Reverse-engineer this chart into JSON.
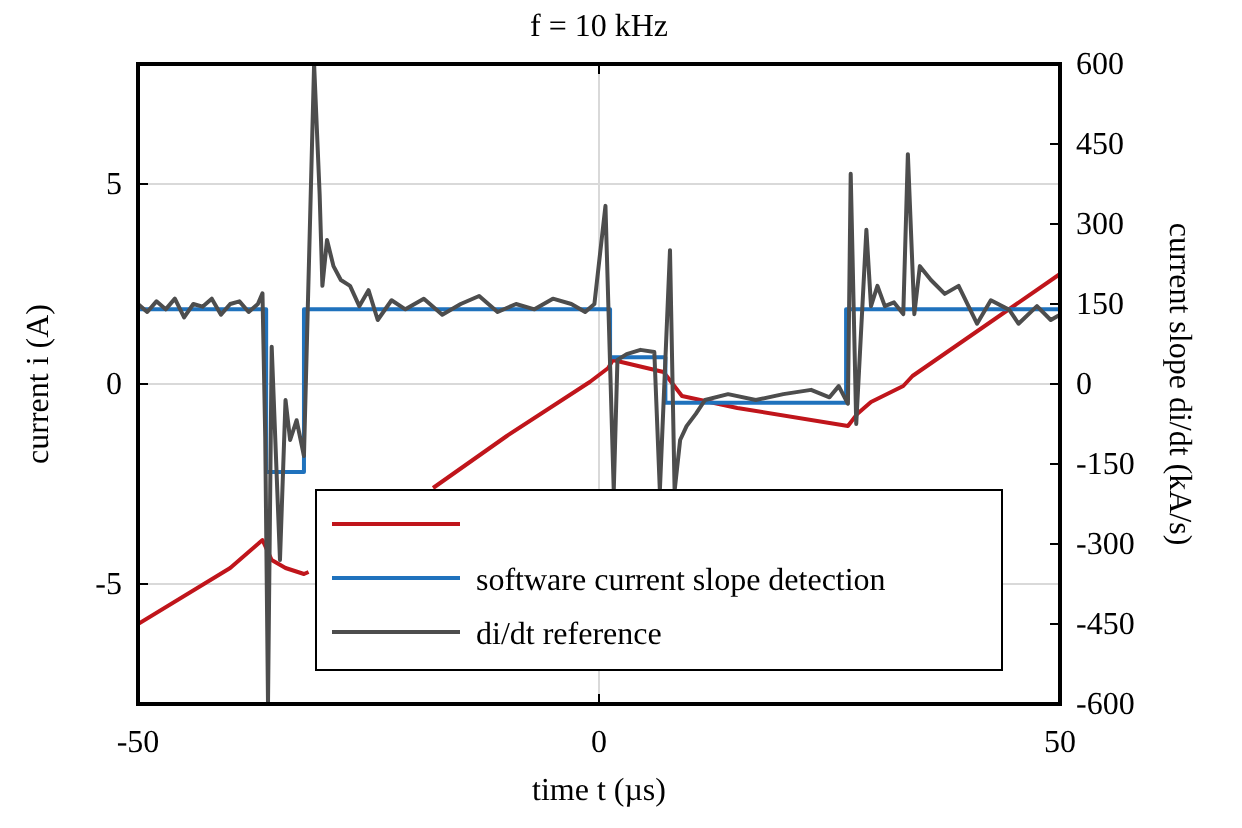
{
  "chart_data": {
    "type": "line",
    "title": "f = 10 kHz",
    "xlabel": "time t (µs)",
    "ylabel": "current i (A)",
    "y2label": "current slope di/dt (kA/s)",
    "xlim": [
      -50,
      50
    ],
    "xticks": [
      -50,
      0,
      50
    ],
    "ylim": [
      -8,
      8
    ],
    "yticks": [
      -5,
      0,
      5
    ],
    "y2lim": [
      -600,
      600
    ],
    "y2ticks": [
      -600,
      -450,
      -300,
      -150,
      0,
      150,
      300,
      450,
      600
    ],
    "grid": true,
    "legend": "bottom",
    "line_style": "solid",
    "marker": "none",
    "series": [
      {
        "color": "#c0151b",
        "axis": "y",
        "x": [
          -50,
          -40,
          -36.5,
          -35.5,
          -34,
          -32,
          -31.5,
          -25,
          -18,
          -10,
          -1,
          1,
          1.5,
          7,
          9,
          15,
          27,
          28,
          29.5,
          33,
          34,
          50
        ],
        "values": [
          -6,
          -4.6,
          -3.9,
          -4.4,
          -4.6,
          -4.75,
          -4.7,
          null,
          -2.6,
          -1.3,
          0.05,
          0.4,
          0.6,
          0.3,
          -0.3,
          -0.6,
          -1.05,
          -0.75,
          -0.45,
          -0.05,
          0.2,
          2.75
        ]
      },
      {
        "name": "software current slope detection",
        "type": "step",
        "color": "#1f72bd",
        "axis": "y2",
        "x": [
          -50,
          -36.1,
          -32,
          1.2,
          7.2,
          26.8,
          50
        ],
        "values": [
          140,
          -165,
          140,
          50,
          -35,
          140,
          140
        ]
      },
      {
        "name": "di/dt reference",
        "color": "#4d4d4d",
        "axis": "y2",
        "x": [
          -50,
          -49,
          -48,
          -47,
          -46,
          -45,
          -44,
          -43,
          -42,
          -41,
          -40,
          -39,
          -38,
          -37,
          -36.5,
          -36.2,
          -35.9,
          -35.5,
          -34.6,
          -34,
          -33.5,
          -32.8,
          -32,
          -30.9,
          -30.3,
          -30,
          -29.5,
          -28.8,
          -28,
          -27,
          -26,
          -25,
          -24,
          -22.5,
          -21,
          -19,
          -17,
          -15,
          -13,
          -11,
          -9,
          -7,
          -5,
          -3,
          -1.5,
          -0.5,
          0.7,
          1.6,
          2,
          3,
          4.5,
          6,
          6.6,
          7.7,
          8.2,
          8.8,
          9.5,
          10.5,
          11.5,
          14,
          17,
          20,
          23,
          25,
          26,
          27,
          27.3,
          27.9,
          29,
          29.5,
          30.2,
          31,
          32,
          33,
          33.5,
          34.2,
          34.8,
          36,
          37.5,
          39,
          41,
          42.5,
          44.5,
          45.5,
          47.5,
          49,
          50
        ],
        "values": [
          150,
          135,
          155,
          140,
          160,
          125,
          150,
          145,
          160,
          130,
          150,
          155,
          135,
          150,
          170,
          -100,
          -600,
          70,
          -330,
          -30,
          -105,
          -68,
          -135,
          600,
          356,
          184,
          270,
          221,
          195,
          184,
          146,
          176,
          120,
          157,
          140,
          160,
          130,
          150,
          165,
          135,
          150,
          140,
          160,
          150,
          135,
          150,
          334,
          -200,
          45,
          56,
          64,
          60,
          -200,
          251,
          -200,
          -105,
          -79,
          -56,
          -30,
          -19,
          -30,
          -19,
          -11,
          -25,
          -4,
          -37,
          394,
          -75,
          289,
          146,
          184,
          146,
          153,
          131,
          431,
          131,
          221,
          195,
          169,
          184,
          113,
          157,
          139,
          113,
          146,
          120,
          130
        ]
      }
    ]
  }
}
